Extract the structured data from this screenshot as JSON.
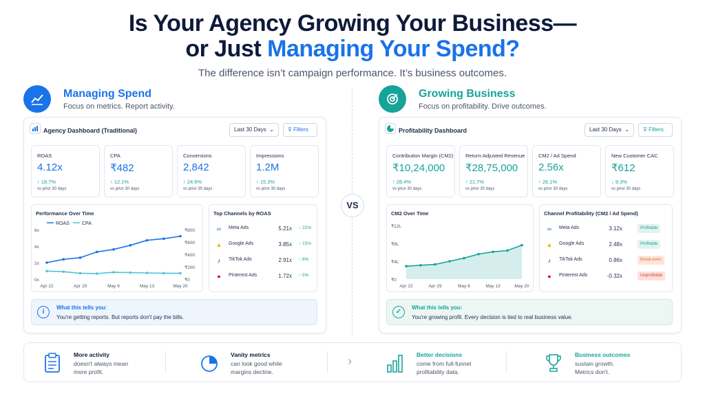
{
  "headline": {
    "line1": "Is Your Agency Growing Your Business—",
    "line2_prefix": "or Just ",
    "line2_highlight": "Managing Your Spend?"
  },
  "subtitle": "The difference isn’t campaign performance. It’s business outcomes.",
  "vs_label": "VS",
  "left": {
    "title": "Managing Spend",
    "desc": "Focus on metrics. Report activity.",
    "dashboard_title": "Agency Dashboard (Traditional)",
    "date_range": "Last 30 Days",
    "filters_label": "Filters",
    "kpis": [
      {
        "label": "ROAS",
        "value": "4.12x",
        "change": "↑ 18.7%",
        "prior": "vs prior 30 days"
      },
      {
        "label": "CPA",
        "value": "₹482",
        "change": "↑ 12.1%",
        "prior": "vs prior 30 days"
      },
      {
        "label": "Conversions",
        "value": "2,842",
        "change": "↑ 24.6%",
        "prior": "vs prior 30 days"
      },
      {
        "label": "Impressions",
        "value": "1.2M",
        "change": "↑ 15.3%",
        "prior": "vs prior 30 days"
      }
    ],
    "channels_title": "Top Channels by ROAS",
    "channels": [
      {
        "name": "Meta Ads",
        "value": "5.21x",
        "change": "↑ 22%",
        "icon": "meta-icon"
      },
      {
        "name": "Google Ads",
        "value": "3.85x",
        "change": "↑ 15%",
        "icon": "google-ads-icon"
      },
      {
        "name": "TikTok Ads",
        "value": "2.91x",
        "change": "↑ 8%",
        "icon": "tiktok-icon"
      },
      {
        "name": "Pinterest Ads",
        "value": "1.72x",
        "change": "↑ 5%",
        "icon": "pinterest-icon"
      }
    ],
    "insight_heading": "What this tells you:",
    "insight_text": "You're getting reports. But reports don't pay the bills."
  },
  "right": {
    "title": "Growing Business",
    "desc": "Focus on profitability. Drive outcomes.",
    "dashboard_title": "Profitability Dashboard",
    "date_range": "Last 30 Days",
    "filters_label": "Filters",
    "kpis": [
      {
        "label": "Contribution Margin (CM2)",
        "value": "₹10,24,000",
        "change": "↑ 28.4%",
        "prior": "vs prior 30 days"
      },
      {
        "label": "Return-Adjusted Revenue",
        "value": "₹28,75,000",
        "change": "↑ 21.7%",
        "prior": "vs prior 30 days"
      },
      {
        "label": "CM2 / Ad Spend",
        "value": "2.56x",
        "change": "↑ 26.1%",
        "prior": "vs prior 30 days"
      },
      {
        "label": "New Customer CAC",
        "value": "₹612",
        "change": "↓ 9.3%",
        "prior": "vs prior 30 days"
      }
    ],
    "channels_title": "Channel Profitability (CM2 / Ad Spend)",
    "channels": [
      {
        "name": "Meta Ads",
        "value": "3.12x",
        "tag": "Profitable",
        "status": "profitable",
        "icon": "meta-icon"
      },
      {
        "name": "Google Ads",
        "value": "2.48x",
        "tag": "Profitable",
        "status": "profitable",
        "icon": "google-ads-icon"
      },
      {
        "name": "TikTok Ads",
        "value": "0.86x",
        "tag": "Break-even",
        "status": "break-even",
        "icon": "tiktok-icon"
      },
      {
        "name": "Pinterest Ads",
        "value": "-0.32x",
        "tag": "Unprofitable",
        "status": "unprofitable",
        "icon": "pinterest-icon"
      }
    ],
    "insight_heading": "What this tells you:",
    "insight_text": "You're growing profit. Every decision is tied to real business value."
  },
  "footer": [
    {
      "title": "More activity",
      "desc1": "doesn't always mean",
      "desc2": "more profit.",
      "icon": "clipboard-icon"
    },
    {
      "title": "Vanity metrics",
      "desc1": "can look good while",
      "desc2": "margins decline.",
      "icon": "pie-chart-icon"
    },
    {
      "title": "Better decisions",
      "desc1": "come from full-funnel",
      "desc2": "profitability data.",
      "icon": "bar-chart-icon"
    },
    {
      "title": "Business outcomes",
      "desc1": "sustain growth.",
      "desc2": "Metrics don't.",
      "icon": "trophy-icon"
    }
  ],
  "colors": {
    "blue": "#1a73e8",
    "teal": "#15a39a",
    "break_even": "#e2703a",
    "unprofitable": "#d9412f"
  },
  "chart_data": [
    {
      "type": "line",
      "title": "Performance Over Time",
      "categories": [
        "Apr 22",
        "Apr 29",
        "May 6",
        "May 13",
        "May 20"
      ],
      "x": [
        0,
        1,
        2,
        3,
        4,
        5,
        6,
        7,
        8
      ],
      "series": [
        {
          "name": "ROAS",
          "axis": "left",
          "values": [
            2.0,
            2.4,
            2.6,
            3.3,
            3.6,
            4.1,
            4.7,
            4.9,
            5.2
          ]
        },
        {
          "name": "CPA",
          "axis": "right",
          "values": [
            130,
            120,
            95,
            90,
            110,
            105,
            100,
            95,
            95
          ]
        }
      ],
      "ylim_left": [
        0,
        6
      ],
      "yticks_left": [
        "0x",
        "2x",
        "4x",
        "6x"
      ],
      "ylim_right": [
        0,
        800
      ],
      "yticks_right": [
        "₹0",
        "₹200",
        "₹400",
        "₹600",
        "₹800"
      ],
      "legend": "top-left"
    },
    {
      "type": "area",
      "title": "CM2 Over Time",
      "categories": [
        "Apr 22",
        "Apr 29",
        "May 6",
        "May 13",
        "May 20"
      ],
      "x": [
        0,
        1,
        2,
        3,
        4,
        5,
        6,
        7,
        8
      ],
      "series": [
        {
          "values": [
            2.9,
            3.1,
            3.3,
            4.0,
            4.7,
            5.6,
            6.1,
            6.4,
            7.6
          ]
        }
      ],
      "ylim": [
        0,
        12
      ],
      "yticks": [
        "₹0",
        "₹4L",
        "₹8L",
        "₹12L"
      ]
    }
  ]
}
